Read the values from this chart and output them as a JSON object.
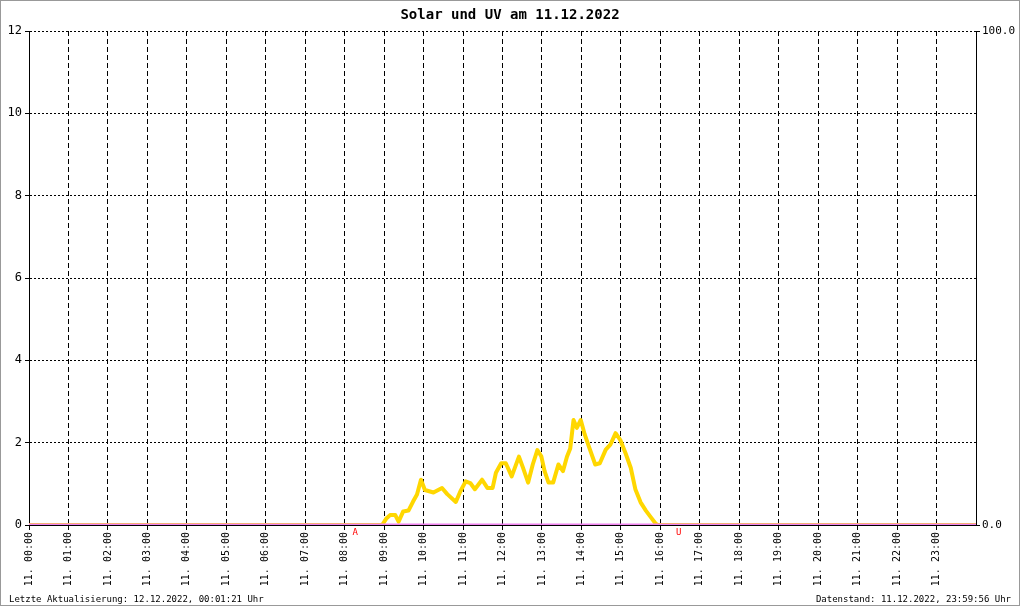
{
  "chart_data": {
    "type": "line",
    "title": "Solar und UV am 11.12.2022",
    "series": [
      {
        "color": "#ffd700",
        "x": [
          "2022-12-11T00:00",
          "2022-12-11T08:57",
          "2022-12-11T09:03",
          "2022-12-11T09:09",
          "2022-12-11T09:17",
          "2022-12-11T09:22",
          "2022-12-11T09:29",
          "2022-12-11T09:37",
          "2022-12-11T09:44",
          "2022-12-11T09:50",
          "2022-12-11T09:56",
          "2022-12-11T10:02",
          "2022-12-11T10:15",
          "2022-12-11T10:28",
          "2022-12-11T10:36",
          "2022-12-11T10:49",
          "2022-12-11T10:56",
          "2022-12-11T11:04",
          "2022-12-11T11:11",
          "2022-12-11T11:18",
          "2022-12-11T11:29",
          "2022-12-11T11:37",
          "2022-12-11T11:45",
          "2022-12-11T11:50",
          "2022-12-11T11:58",
          "2022-12-11T12:05",
          "2022-12-11T12:14",
          "2022-12-11T12:25",
          "2022-12-11T12:31",
          "2022-12-11T12:39",
          "2022-12-11T12:46",
          "2022-12-11T12:53",
          "2022-12-11T12:59",
          "2022-12-11T13:04",
          "2022-12-11T13:10",
          "2022-12-11T13:17",
          "2022-12-11T13:25",
          "2022-12-11T13:32",
          "2022-12-11T13:38",
          "2022-12-11T13:43",
          "2022-12-11T13:48",
          "2022-12-11T13:53",
          "2022-12-11T13:59",
          "2022-12-11T14:05",
          "2022-12-11T14:13",
          "2022-12-11T14:21",
          "2022-12-11T14:28",
          "2022-12-11T14:37",
          "2022-12-11T14:44",
          "2022-12-11T14:52",
          "2022-12-11T14:59",
          "2022-12-11T15:07",
          "2022-12-11T15:15",
          "2022-12-11T15:22",
          "2022-12-11T15:30",
          "2022-12-11T15:38",
          "2022-12-11T15:46",
          "2022-12-11T15:53",
          "2022-12-11T15:56",
          "2022-12-12T00:00"
        ],
        "values": [
          0,
          0,
          0.15,
          0.24,
          0.24,
          0.08,
          0.33,
          0.35,
          0.57,
          0.74,
          1.1,
          0.85,
          0.79,
          0.9,
          0.75,
          0.56,
          0.82,
          1.06,
          1.02,
          0.87,
          1.1,
          0.9,
          0.9,
          1.27,
          1.5,
          1.5,
          1.18,
          1.66,
          1.4,
          1.03,
          1.47,
          1.82,
          1.67,
          1.31,
          1.03,
          1.03,
          1.47,
          1.31,
          1.66,
          1.86,
          2.55,
          2.36,
          2.55,
          2.2,
          1.83,
          1.47,
          1.5,
          1.83,
          1.95,
          2.23,
          2.07,
          1.75,
          1.39,
          0.87,
          0.55,
          0.35,
          0.18,
          0.03,
          0,
          0
        ]
      },
      {
        "color": "#ee82ee",
        "axis": "y2",
        "x": [
          "2022-12-11T00:00",
          "2022-12-12T00:00"
        ],
        "values": [
          0,
          0
        ]
      }
    ],
    "xlim": [
      "2022-12-11T00:00",
      "2022-12-12T00:00"
    ],
    "xticks": [
      {
        "value": "2022-12-11T00:00",
        "label": "11. 00:00"
      },
      {
        "value": "2022-12-11T01:00",
        "label": "11. 01:00"
      },
      {
        "value": "2022-12-11T02:00",
        "label": "11. 02:00"
      },
      {
        "value": "2022-12-11T03:00",
        "label": "11. 03:00"
      },
      {
        "value": "2022-12-11T04:00",
        "label": "11. 04:00"
      },
      {
        "value": "2022-12-11T05:00",
        "label": "11. 05:00"
      },
      {
        "value": "2022-12-11T06:00",
        "label": "11. 06:00"
      },
      {
        "value": "2022-12-11T07:00",
        "label": "11. 07:00"
      },
      {
        "value": "2022-12-11T08:00",
        "label": "11. 08:00"
      },
      {
        "value": "2022-12-11T09:00",
        "label": "11. 09:00"
      },
      {
        "value": "2022-12-11T10:00",
        "label": "11. 10:00"
      },
      {
        "value": "2022-12-11T11:00",
        "label": "11. 11:00"
      },
      {
        "value": "2022-12-11T12:00",
        "label": "11. 12:00"
      },
      {
        "value": "2022-12-11T13:00",
        "label": "11. 13:00"
      },
      {
        "value": "2022-12-11T14:00",
        "label": "11. 14:00"
      },
      {
        "value": "2022-12-11T15:00",
        "label": "11. 15:00"
      },
      {
        "value": "2022-12-11T16:00",
        "label": "11. 16:00"
      },
      {
        "value": "2022-12-11T17:00",
        "label": "11. 17:00"
      },
      {
        "value": "2022-12-11T18:00",
        "label": "11. 18:00"
      },
      {
        "value": "2022-12-11T19:00",
        "label": "11. 19:00"
      },
      {
        "value": "2022-12-11T20:00",
        "label": "11. 20:00"
      },
      {
        "value": "2022-12-11T21:00",
        "label": "11. 21:00"
      },
      {
        "value": "2022-12-11T22:00",
        "label": "11. 22:00"
      },
      {
        "value": "2022-12-11T23:00",
        "label": "11. 23:00"
      }
    ],
    "ylim": [
      0,
      12
    ],
    "yticks": [
      0,
      2,
      4,
      6,
      8,
      10,
      12
    ],
    "y2lim": [
      0,
      100
    ],
    "y2ticks": [
      {
        "value": 0,
        "label": "0.0"
      },
      {
        "value": 100,
        "label": "100.0"
      }
    ],
    "grid": true,
    "marker": "none",
    "annotations": [
      "Letzte Aktualisierung: 12.12.2022, 00:01:21 Uhr",
      "Datenstand: 11.12.2022, 23:59:56 Uhr",
      {
        "text": "A",
        "x": "2022-12-11T08:12",
        "y": 0
      },
      {
        "text": "U",
        "x": "2022-12-11T16:24",
        "y": 0
      }
    ]
  }
}
